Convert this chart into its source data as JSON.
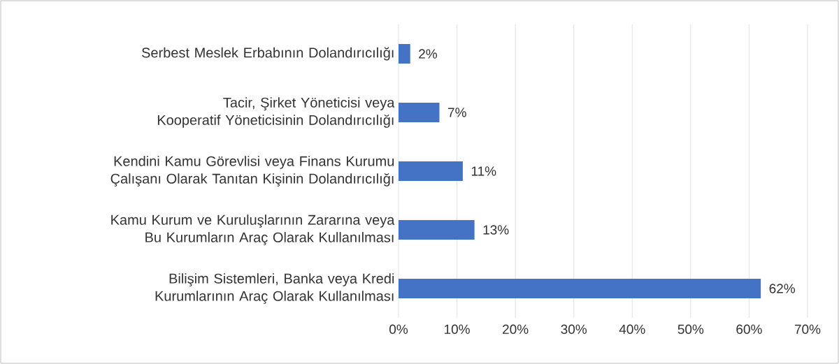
{
  "chart_data": {
    "type": "bar",
    "orientation": "horizontal",
    "categories": [
      "Serbest Meslek Erbabının Dolandırıcılığı",
      "Tacir, Şirket Yöneticisi veya Kooperatif Yöneticisinin Dolandırıcılığı",
      "Kendini Kamu Görevlisi veya Finans Kurumu Çalışanı Olarak Tanıtan Kişinin Dolandırıcılığı",
      "Kamu Kurum ve Kuruluşlarının Zararına veya Bu Kurumların Araç Olarak Kullanılması",
      "Bilişim Sistemleri, Banka veya Kredi Kurumlarının Araç Olarak Kullanılması"
    ],
    "values": [
      2,
      7,
      11,
      13,
      62
    ],
    "value_labels": [
      "2%",
      "7%",
      "11%",
      "13%",
      "62%"
    ],
    "color": "#4472c4",
    "xlim": [
      0,
      70
    ],
    "xticks": [
      {
        "value": 0,
        "label": "0%"
      },
      {
        "value": 10,
        "label": "10%"
      },
      {
        "value": 20,
        "label": "20%"
      },
      {
        "value": 30,
        "label": "30%"
      },
      {
        "value": 40,
        "label": "40%"
      },
      {
        "value": 50,
        "label": "50%"
      },
      {
        "value": 60,
        "label": "60%"
      },
      {
        "value": 70,
        "label": "70%"
      }
    ],
    "grid": "x"
  }
}
